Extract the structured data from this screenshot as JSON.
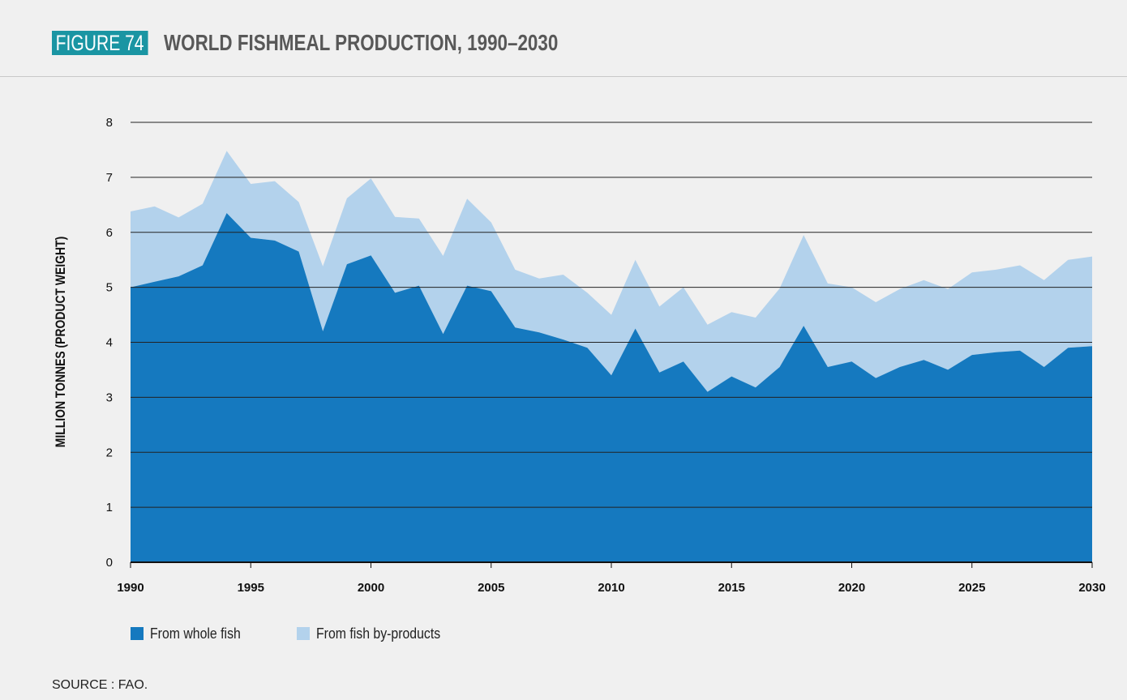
{
  "figure": {
    "badge": "FIGURE 74",
    "title": "WORLD FISHMEAL PRODUCTION, 1990–2030",
    "source": "SOURCE : FAO."
  },
  "colors": {
    "whole_fish": "#1579bf",
    "by_products": "#b3d2ec",
    "gridline": "#222222",
    "axis": "#111111"
  },
  "chart_data": {
    "type": "area",
    "stacked": true,
    "ylabel": "MILLION TONNES (PRODUCT WEIGHT)",
    "xlabel": "",
    "ylim": [
      0,
      8
    ],
    "xlim": [
      1990,
      2030
    ],
    "yticks": [
      0,
      1,
      2,
      3,
      4,
      5,
      6,
      7,
      8
    ],
    "xticks": [
      1990,
      1995,
      2000,
      2005,
      2010,
      2015,
      2020,
      2025,
      2030
    ],
    "grid": true,
    "legend_position": "bottom-left",
    "x": [
      1990,
      1991,
      1992,
      1993,
      1994,
      1995,
      1996,
      1997,
      1998,
      1999,
      2000,
      2001,
      2002,
      2003,
      2004,
      2005,
      2006,
      2007,
      2008,
      2009,
      2010,
      2011,
      2012,
      2013,
      2014,
      2015,
      2016,
      2017,
      2018,
      2019,
      2020,
      2021,
      2022,
      2023,
      2024,
      2025,
      2026,
      2027,
      2028,
      2029,
      2030
    ],
    "series": [
      {
        "name": "From whole fish",
        "values": [
          5.0,
          5.1,
          5.2,
          5.4,
          6.35,
          5.9,
          5.85,
          5.65,
          4.2,
          5.42,
          5.58,
          4.9,
          5.03,
          4.15,
          5.03,
          4.93,
          4.27,
          4.18,
          4.05,
          3.9,
          3.4,
          4.25,
          3.45,
          3.65,
          3.1,
          3.38,
          3.18,
          3.55,
          4.3,
          3.55,
          3.65,
          3.35,
          3.55,
          3.68,
          3.5,
          3.77,
          3.82,
          3.85,
          3.55,
          3.9,
          3.93
        ]
      },
      {
        "name": "From fish by-products",
        "values": [
          1.38,
          1.37,
          1.07,
          1.12,
          1.13,
          0.98,
          1.08,
          0.9,
          1.18,
          1.2,
          1.4,
          1.38,
          1.22,
          1.42,
          1.58,
          1.25,
          1.05,
          0.98,
          1.18,
          1.0,
          1.1,
          1.25,
          1.2,
          1.35,
          1.22,
          1.17,
          1.27,
          1.43,
          1.65,
          1.52,
          1.35,
          1.38,
          1.42,
          1.45,
          1.47,
          1.5,
          1.5,
          1.55,
          1.58,
          1.6,
          1.63
        ]
      }
    ]
  }
}
